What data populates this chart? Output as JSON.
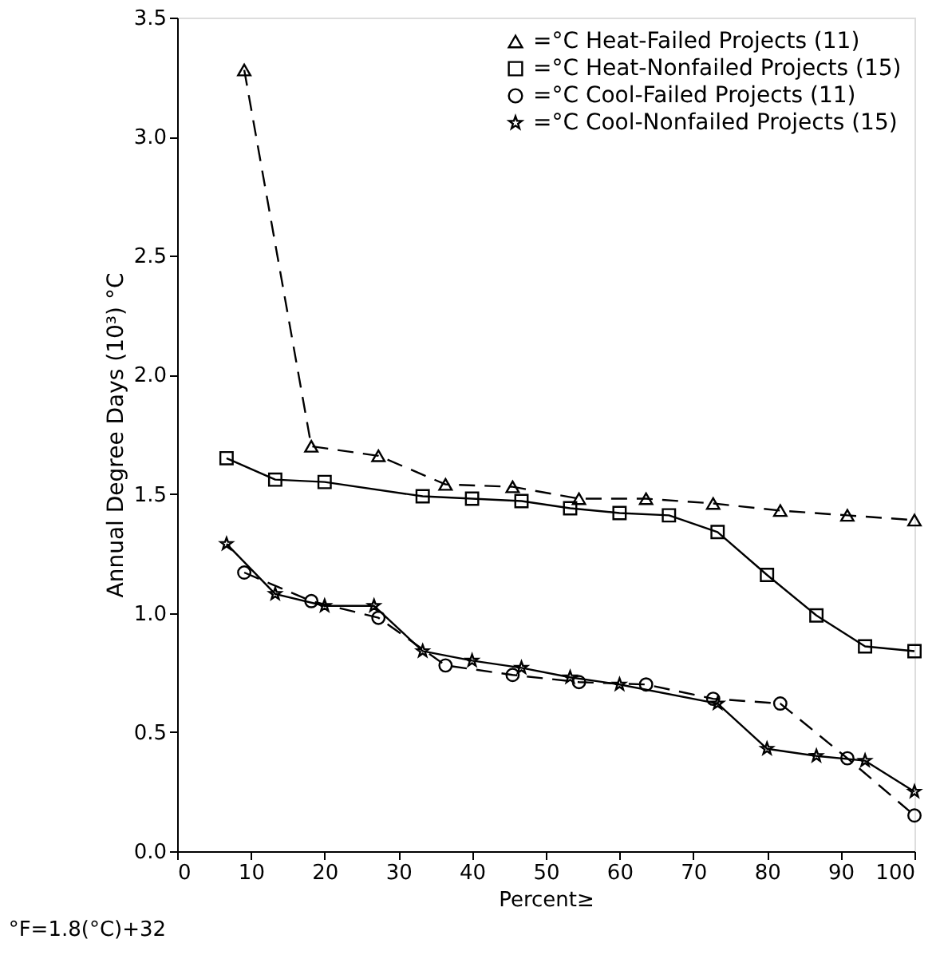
{
  "chart_data": {
    "type": "line",
    "xlabel": "Percent≥",
    "ylabel": "Annual Degree Days (10³) °C",
    "annotations": [
      "°F=1.8(°C)+32"
    ],
    "xlim": [
      0,
      100
    ],
    "xticks": [
      0,
      10,
      20,
      30,
      40,
      50,
      60,
      70,
      80,
      90,
      100
    ],
    "ylim": [
      0,
      3.5
    ],
    "yticks": [
      {
        "value": 0,
        "label": "0.0"
      },
      {
        "value": 0.5,
        "label": "0.5"
      },
      {
        "value": 1,
        "label": "1.0"
      },
      {
        "value": 1.5,
        "label": "1.5"
      },
      {
        "value": 2,
        "label": "2.0"
      },
      {
        "value": 2.5,
        "label": "2.5"
      },
      {
        "value": 3,
        "label": "3.0"
      },
      {
        "value": 3.5,
        "label": "3.5"
      }
    ],
    "grid": false,
    "legend": "top right",
    "series": [
      {
        "name": "=°C Heat-Failed Projects (11)",
        "color": "#000000",
        "marker": "triangle",
        "line_style": "dashed",
        "x": [
          9.1,
          18.2,
          27.3,
          36.4,
          45.5,
          54.5,
          63.6,
          72.7,
          81.8,
          90.9,
          100
        ],
        "values": [
          3.28,
          1.7,
          1.66,
          1.54,
          1.53,
          1.48,
          1.48,
          1.46,
          1.43,
          1.41,
          1.39
        ]
      },
      {
        "name": "=°C Heat-Nonfailed Projects (15)",
        "color": "#000000",
        "marker": "square",
        "line_style": "solid",
        "x": [
          6.7,
          13.3,
          20,
          33.3,
          40,
          46.7,
          53.3,
          60,
          66.7,
          73.3,
          80,
          86.7,
          93.3,
          100
        ],
        "values": [
          1.65,
          1.56,
          1.55,
          1.49,
          1.48,
          1.47,
          1.44,
          1.42,
          1.41,
          1.34,
          1.16,
          0.99,
          0.86,
          0.84
        ]
      },
      {
        "name": "=°C Cool-Failed Projects (11)",
        "color": "#000000",
        "marker": "circle",
        "line_style": "dashed",
        "x": [
          9.1,
          18.2,
          27.3,
          36.4,
          45.5,
          54.5,
          63.6,
          72.7,
          81.8,
          90.9,
          100
        ],
        "values": [
          1.17,
          1.05,
          0.98,
          0.78,
          0.74,
          0.71,
          0.7,
          0.64,
          0.62,
          0.39,
          0.15
        ]
      },
      {
        "name": "=°C Cool-Nonfailed Projects (15)",
        "color": "#000000",
        "marker": "star",
        "line_style": "solid",
        "x": [
          6.7,
          13.3,
          20,
          26.7,
          33.3,
          40,
          46.7,
          53.3,
          60,
          73.3,
          80,
          86.7,
          93.3,
          100
        ],
        "values": [
          1.29,
          1.08,
          1.03,
          1.03,
          0.84,
          0.8,
          0.77,
          0.73,
          0.7,
          0.62,
          0.43,
          0.4,
          0.38,
          0.25
        ]
      }
    ]
  }
}
